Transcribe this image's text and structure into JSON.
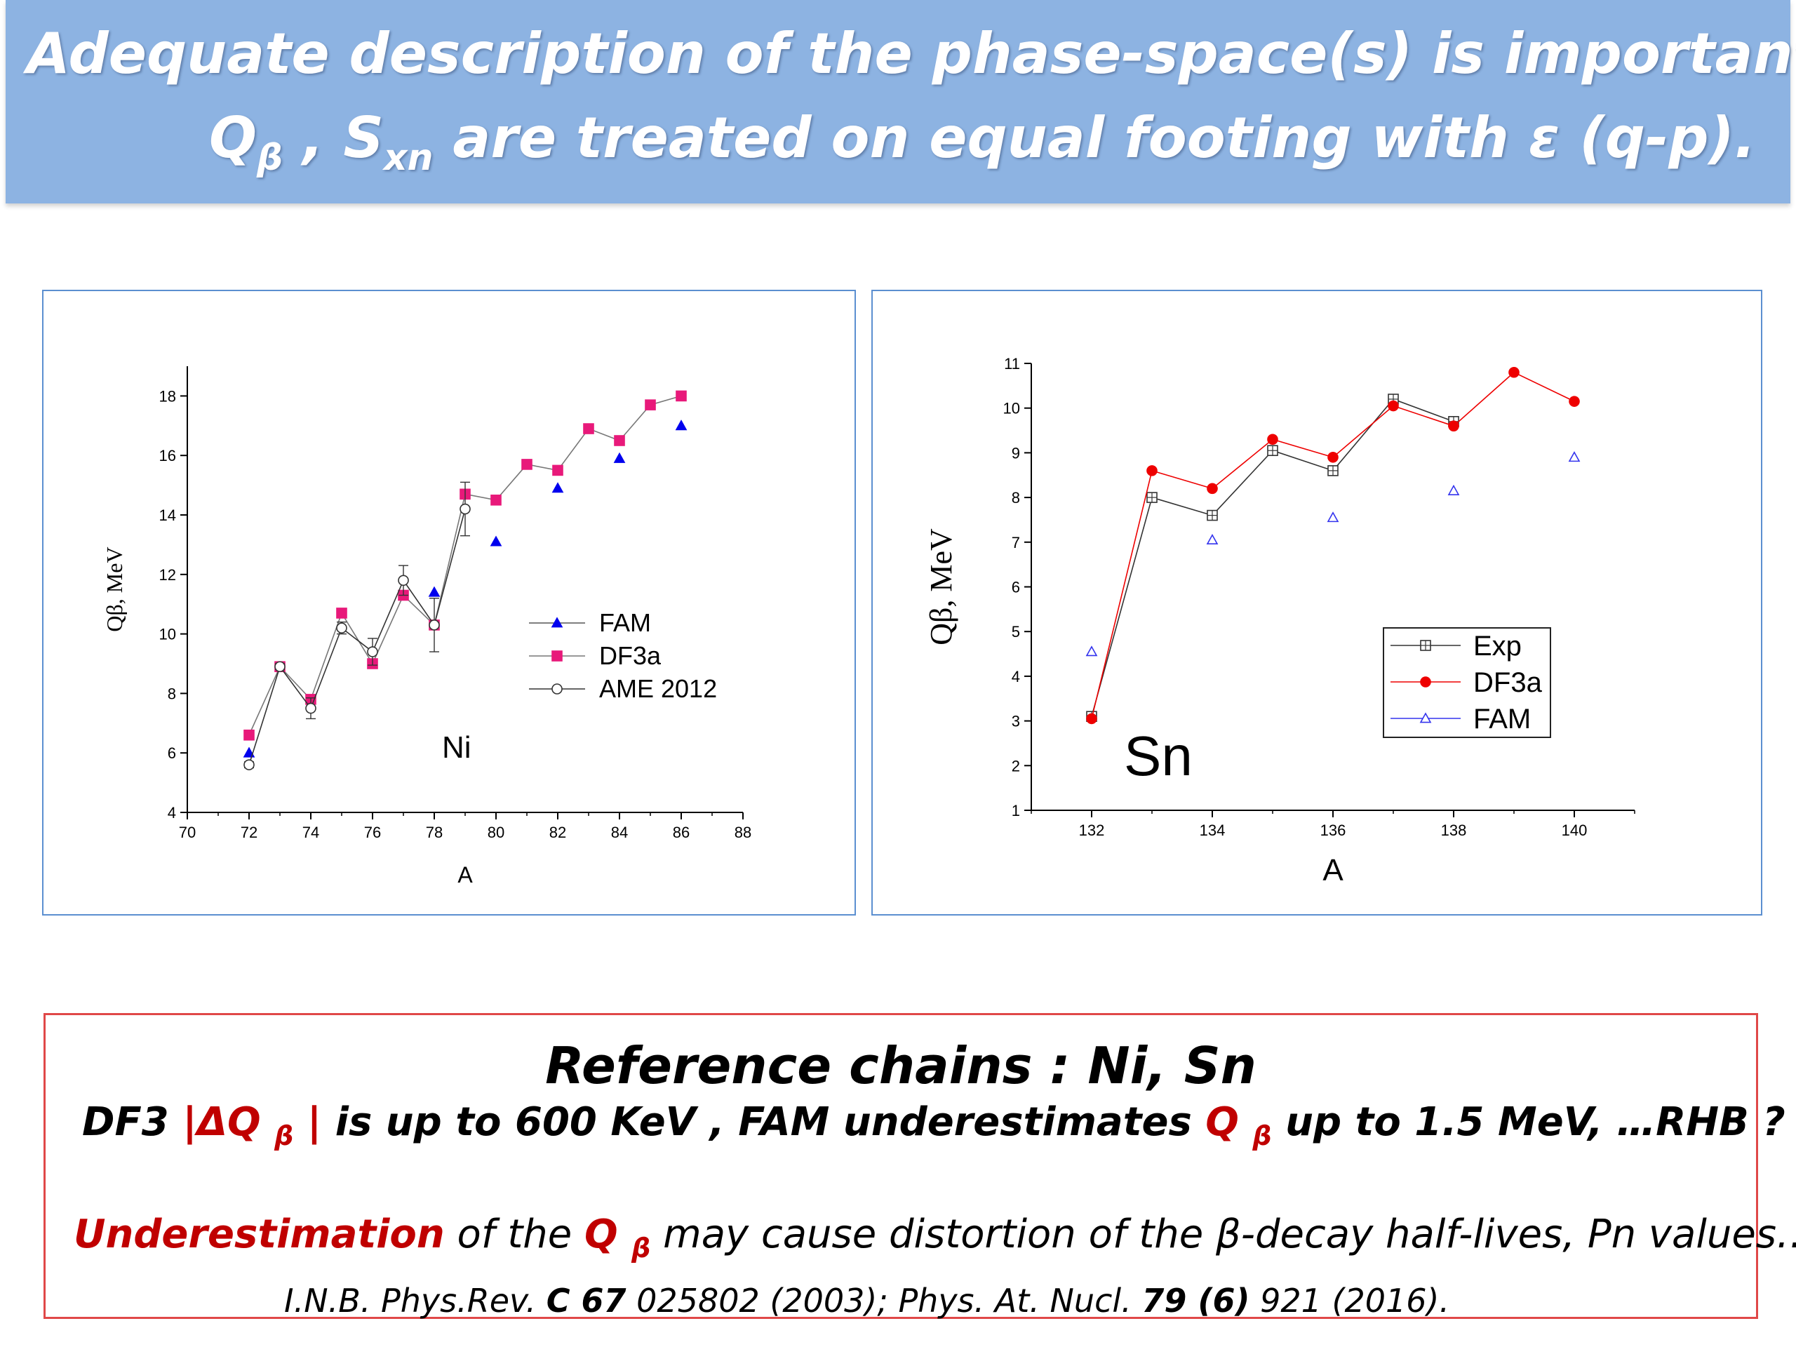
{
  "banner": {
    "line1": "Adequate description of the phase-space(s)   is  important .",
    "line2_q": "Q",
    "line2_q_sub": "β",
    "line2_sep": " , ",
    "line2_s": "S",
    "line2_s_sub": "xn",
    "line2_rest": " are treated  on  equal  footing  with ε (q-p)."
  },
  "chart_data": [
    {
      "type": "scatter",
      "label": "Ni",
      "xlabel": "A",
      "ylabel": "Qβ, MeV",
      "xlim": [
        70,
        88
      ],
      "ylim": [
        4,
        19
      ],
      "xticks": [
        70,
        72,
        74,
        76,
        78,
        80,
        82,
        84,
        86,
        88
      ],
      "yticks": [
        4,
        6,
        8,
        10,
        12,
        14,
        16,
        18
      ],
      "series": [
        {
          "name": "FAM",
          "color": "#0000ee",
          "marker": "triangle-filled",
          "line": false,
          "x": [
            72,
            78,
            80,
            82,
            84,
            86
          ],
          "y": [
            6.0,
            11.4,
            13.1,
            14.9,
            15.9,
            17.0
          ]
        },
        {
          "name": "DF3a",
          "color": "#e8197a",
          "marker": "square-filled",
          "line": true,
          "x": [
            72,
            73,
            74,
            75,
            76,
            77,
            78,
            79,
            80,
            81,
            82,
            83,
            84,
            85,
            86
          ],
          "y": [
            6.6,
            8.9,
            7.8,
            10.7,
            9.0,
            11.3,
            10.3,
            14.7,
            14.5,
            15.7,
            15.5,
            16.9,
            16.5,
            17.7,
            18.0
          ]
        },
        {
          "name": "AME 2012",
          "color": "#333333",
          "marker": "circle-open",
          "line": true,
          "x": [
            72,
            73,
            74,
            75,
            76,
            77,
            78,
            79
          ],
          "y": [
            5.6,
            8.9,
            7.5,
            10.2,
            9.4,
            11.8,
            10.3,
            14.2
          ],
          "err": [
            0.1,
            0.1,
            0.35,
            0.2,
            0.45,
            0.5,
            0.9,
            0.9
          ]
        }
      ],
      "legend": [
        "FAM",
        "DF3a",
        "AME 2012"
      ]
    },
    {
      "type": "scatter",
      "label": "Sn",
      "xlabel": "A",
      "ylabel": "Qβ, MeV",
      "xlim": [
        131,
        141
      ],
      "ylim": [
        1,
        11
      ],
      "xticks": [
        132,
        134,
        136,
        138,
        140
      ],
      "yticks": [
        1,
        2,
        3,
        4,
        5,
        6,
        7,
        8,
        9,
        10,
        11
      ],
      "series": [
        {
          "name": "Exp",
          "color": "#333333",
          "marker": "square-open",
          "line": true,
          "x": [
            132,
            133,
            134,
            135,
            136,
            137,
            138
          ],
          "y": [
            3.1,
            8.0,
            7.6,
            9.05,
            8.6,
            10.2,
            9.7
          ]
        },
        {
          "name": "DF3a",
          "color": "#ee0000",
          "marker": "circle-filled",
          "line": true,
          "x": [
            132,
            133,
            134,
            135,
            136,
            137,
            138,
            139,
            140
          ],
          "y": [
            3.05,
            8.6,
            8.2,
            9.3,
            8.9,
            10.05,
            9.6,
            10.8,
            10.15
          ]
        },
        {
          "name": "FAM",
          "color": "#3333ee",
          "marker": "triangle-open",
          "line": false,
          "x": [
            132,
            134,
            136,
            138,
            140
          ],
          "y": [
            4.55,
            7.05,
            7.55,
            8.15,
            8.9
          ]
        }
      ],
      "legend": [
        "Exp",
        "DF3a",
        "FAM"
      ]
    }
  ],
  "reference": {
    "title": "Reference chains : Ni, Sn",
    "l1_a": "DF3  ",
    "l1_b": "|ΔQ ",
    "l1_b_sub": "β",
    "l1_c": " |",
    "l1_d": " is up to 600 KeV ,         FAM   underestimates ",
    "l1_e": "Q ",
    "l1_e_sub": "β",
    "l1_f": " up to 1.5  MeV,     …RHB  ?",
    "l2_a": "Underestimation",
    "l2_b": " of the  ",
    "l2_c": "Q ",
    "l2_c_sub": "β",
    "l2_d": "   may cause distortion of  the β-decay half-lives,  Pn values…",
    "l3_a": "I.N.B.  Phys.Rev. ",
    "l3_b": "C 67",
    "l3_c": " 025802 (2003);   Phys. At. Nucl. ",
    "l3_d": "79 (6)",
    "l3_e": " 921 (2016)."
  }
}
